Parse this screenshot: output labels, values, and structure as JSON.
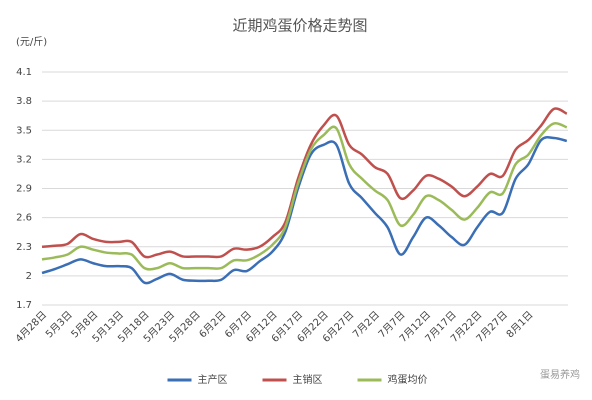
{
  "chart_data": {
    "type": "line",
    "title": "近期鸡蛋价格走势图",
    "y_label": "(元/斤)",
    "watermark": "蛋易养鸡",
    "categories": [
      "4月28日",
      null,
      "5月3日",
      null,
      "5月8日",
      null,
      "5月13日",
      null,
      "5月18日",
      null,
      "5月23日",
      null,
      "5月28日",
      null,
      "6月2日",
      null,
      "6月7日",
      null,
      "6月12日",
      null,
      "6月17日",
      null,
      "6月22日",
      null,
      "6月27日",
      null,
      "7月2日",
      null,
      "7月7日",
      null,
      "7月12日",
      null,
      "7月17日",
      null,
      "7月22日",
      null,
      "7月27日",
      null,
      "8月1日",
      null,
      null,
      null
    ],
    "series": [
      {
        "name": "主产区",
        "color": "#3a6eb5",
        "values": [
          2.03,
          2.07,
          2.12,
          2.17,
          2.13,
          2.1,
          2.1,
          2.08,
          1.93,
          1.97,
          2.02,
          1.96,
          1.95,
          1.95,
          1.96,
          2.06,
          2.05,
          2.15,
          2.25,
          2.45,
          2.9,
          3.25,
          3.35,
          3.35,
          2.95,
          2.8,
          2.65,
          2.5,
          2.22,
          2.4,
          2.6,
          2.52,
          2.4,
          2.32,
          2.5,
          2.66,
          2.65,
          3.0,
          3.15,
          3.4,
          3.42,
          3.39
        ]
      },
      {
        "name": "主销区",
        "color": "#c0504d",
        "values": [
          2.3,
          2.31,
          2.33,
          2.43,
          2.38,
          2.35,
          2.35,
          2.35,
          2.2,
          2.22,
          2.25,
          2.2,
          2.2,
          2.2,
          2.2,
          2.28,
          2.27,
          2.3,
          2.4,
          2.55,
          3.0,
          3.35,
          3.55,
          3.65,
          3.35,
          3.25,
          3.12,
          3.05,
          2.8,
          2.88,
          3.03,
          3.0,
          2.92,
          2.82,
          2.92,
          3.05,
          3.03,
          3.3,
          3.4,
          3.55,
          3.72,
          3.67
        ]
      },
      {
        "name": "鸡蛋均价",
        "color": "#9bbb59",
        "values": [
          2.17,
          2.19,
          2.22,
          2.3,
          2.27,
          2.24,
          2.23,
          2.22,
          2.08,
          2.08,
          2.13,
          2.08,
          2.08,
          2.08,
          2.08,
          2.16,
          2.16,
          2.22,
          2.32,
          2.5,
          2.95,
          3.3,
          3.45,
          3.52,
          3.15,
          3.0,
          2.88,
          2.78,
          2.52,
          2.63,
          2.82,
          2.78,
          2.68,
          2.58,
          2.7,
          2.86,
          2.85,
          3.15,
          3.25,
          3.45,
          3.57,
          3.53
        ]
      }
    ],
    "ylim": [
      1.7,
      4.1
    ],
    "yticks": [
      1.7,
      2,
      2.3,
      2.6,
      2.9,
      3.2,
      3.5,
      3.8,
      4.1
    ],
    "grid": true,
    "legend": "bottom"
  }
}
